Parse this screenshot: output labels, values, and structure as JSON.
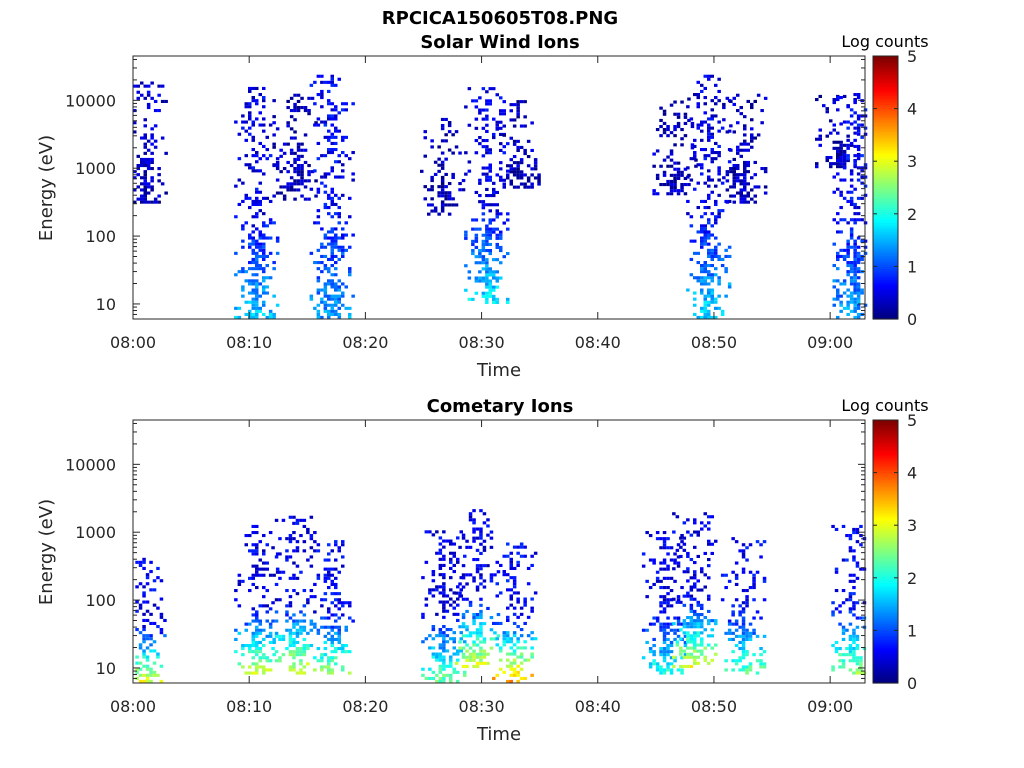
{
  "figure_title": "RPCICA150605T08.PNG",
  "colorbar": {
    "label": "Log counts",
    "ticks": [
      "0",
      "1",
      "2",
      "3",
      "4",
      "5"
    ],
    "range": [
      0,
      5
    ],
    "colormap": "jet"
  },
  "chart_data": [
    {
      "type": "heatmap",
      "title": "Solar Wind Ions",
      "xlabel": "Time",
      "ylabel": "Energy (eV)",
      "x_ticks": [
        "08:00",
        "08:10",
        "08:20",
        "08:30",
        "08:40",
        "08:50",
        "09:00"
      ],
      "x_range_minutes": [
        0,
        63
      ],
      "y_scale": "log",
      "y_range": [
        6,
        45000
      ],
      "y_ticks": [
        "10",
        "100",
        "1000",
        "10000"
      ],
      "clusters": [
        {
          "t": 0.9,
          "low": 300,
          "high": 20000,
          "low_val": 0.3,
          "high_val": 0.4
        },
        {
          "t": 10.5,
          "low": 6,
          "high": 15000,
          "low_val": 1.6,
          "high_val": 0.5
        },
        {
          "t": 13.8,
          "low": 300,
          "high": 12000,
          "low_val": 0.3,
          "high_val": 0.3
        },
        {
          "t": 17.0,
          "low": 6,
          "high": 22000,
          "low_val": 1.4,
          "high_val": 0.6
        },
        {
          "t": 26.5,
          "low": 200,
          "high": 5000,
          "low_val": 0.3,
          "high_val": 0.3
        },
        {
          "t": 30.3,
          "low": 10,
          "high": 15000,
          "low_val": 1.8,
          "high_val": 0.5
        },
        {
          "t": 33.0,
          "low": 500,
          "high": 10000,
          "low_val": 0.3,
          "high_val": 0.3
        },
        {
          "t": 46.5,
          "low": 400,
          "high": 10000,
          "low_val": 0.3,
          "high_val": 0.3
        },
        {
          "t": 49.4,
          "low": 6,
          "high": 22000,
          "low_val": 1.7,
          "high_val": 0.5
        },
        {
          "t": 52.5,
          "low": 300,
          "high": 12000,
          "low_val": 0.3,
          "high_val": 0.3
        },
        {
          "t": 60.5,
          "low": 1000,
          "high": 12000,
          "low_val": 0.3,
          "high_val": 0.3
        },
        {
          "t": 62.0,
          "low": 6,
          "high": 12000,
          "low_val": 1.4,
          "high_val": 0.6
        }
      ]
    },
    {
      "type": "heatmap",
      "title": "Cometary Ions",
      "xlabel": "Time",
      "ylabel": "Energy (eV)",
      "x_ticks": [
        "08:00",
        "08:10",
        "08:20",
        "08:30",
        "08:40",
        "08:50",
        "09:00"
      ],
      "x_range_minutes": [
        0,
        63
      ],
      "y_scale": "log",
      "y_range": [
        6,
        45000
      ],
      "y_ticks": [
        "10",
        "100",
        "1000",
        "10000"
      ],
      "clusters": [
        {
          "t": 0.8,
          "low": 6,
          "high": 400,
          "low_val": 3.0,
          "high_val": 0.5
        },
        {
          "t": 10.5,
          "low": 8,
          "high": 1200,
          "low_val": 2.8,
          "high_val": 0.5
        },
        {
          "t": 13.7,
          "low": 8,
          "high": 1600,
          "low_val": 3.0,
          "high_val": 0.5
        },
        {
          "t": 17.0,
          "low": 8,
          "high": 700,
          "low_val": 2.6,
          "high_val": 0.6
        },
        {
          "t": 26.6,
          "low": 6,
          "high": 1000,
          "low_val": 2.4,
          "high_val": 0.5
        },
        {
          "t": 29.5,
          "low": 10,
          "high": 2000,
          "low_val": 3.0,
          "high_val": 0.5
        },
        {
          "t": 32.7,
          "low": 6,
          "high": 700,
          "low_val": 3.6,
          "high_val": 0.6
        },
        {
          "t": 45.6,
          "low": 8,
          "high": 1000,
          "low_val": 2.0,
          "high_val": 0.5
        },
        {
          "t": 48.2,
          "low": 10,
          "high": 1800,
          "low_val": 3.0,
          "high_val": 0.5
        },
        {
          "t": 52.4,
          "low": 8,
          "high": 800,
          "low_val": 2.4,
          "high_val": 0.6
        },
        {
          "t": 61.9,
          "low": 8,
          "high": 1200,
          "low_val": 2.6,
          "high_val": 0.6
        }
      ]
    }
  ]
}
